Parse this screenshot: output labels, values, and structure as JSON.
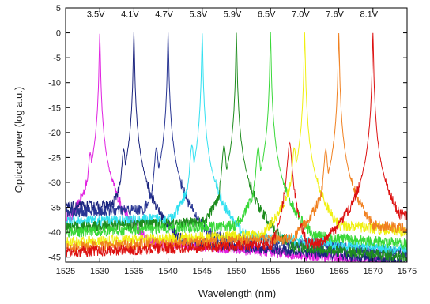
{
  "chart_data": {
    "type": "line",
    "title": "",
    "xlabel": "Wavelength (nm)",
    "ylabel": "Optical power (log a.u.)",
    "xlim": [
      1525,
      1575
    ],
    "ylim": [
      -46,
      5
    ],
    "xticks": [
      1525,
      1530,
      1535,
      1540,
      1545,
      1550,
      1555,
      1560,
      1565,
      1570,
      1575
    ],
    "yticks": [
      5,
      0,
      -5,
      -10,
      -15,
      -20,
      -25,
      -30,
      -35,
      -40,
      -45
    ],
    "grid": false,
    "legend": "none",
    "series": [
      {
        "name": "3.5V",
        "color": "#e020e0",
        "peak_x": 1530.0,
        "peak_y": 0,
        "sub_x": 1528.6,
        "sub_y": -24,
        "floor": -37,
        "highfloor": -41
      },
      {
        "name": "4.1V",
        "color": "#1a237e",
        "peak_x": 1535.0,
        "peak_y": 0,
        "sub_x": 1533.5,
        "sub_y": -23.5,
        "floor": -35,
        "highfloor": -41
      },
      {
        "name": "4.7V",
        "color": "#283593",
        "peak_x": 1540.0,
        "peak_y": 0,
        "sub_x": 1538.3,
        "sub_y": -23,
        "floor": -36,
        "highfloor": -40
      },
      {
        "name": "5.3V",
        "color": "#30e0f0",
        "peak_x": 1545.0,
        "peak_y": 0,
        "sub_x": 1543.5,
        "sub_y": -22.5,
        "floor": -38,
        "highfloor": -40
      },
      {
        "name": "5.9V",
        "color": "#1e8c1e",
        "peak_x": 1550.0,
        "peak_y": 0,
        "sub_x": 1548.2,
        "sub_y": -22.5,
        "floor": -39,
        "highfloor": -42
      },
      {
        "name": "6.5V",
        "color": "#39d839",
        "peak_x": 1555.0,
        "peak_y": 0,
        "sub_x": 1553.2,
        "sub_y": -23,
        "floor": -40,
        "highfloor": -40
      },
      {
        "name": "7.0V",
        "color": "#f0f010",
        "peak_x": 1560.0,
        "peak_y": 0,
        "sub_x": 1558.5,
        "sub_y": -23,
        "floor": -42,
        "highfloor": -38
      },
      {
        "name": "7.6V",
        "color": "#f08020",
        "peak_x": 1565.0,
        "peak_y": 0,
        "sub_x": 1563.1,
        "sub_y": -23.5,
        "floor": -43,
        "highfloor": -38
      },
      {
        "name": "8.1V",
        "color": "#dd1111",
        "peak_x": 1570.0,
        "peak_y": 0,
        "sub_x": 1557.8,
        "sub_y": -22,
        "floor": -44,
        "highfloor": -36
      }
    ]
  }
}
